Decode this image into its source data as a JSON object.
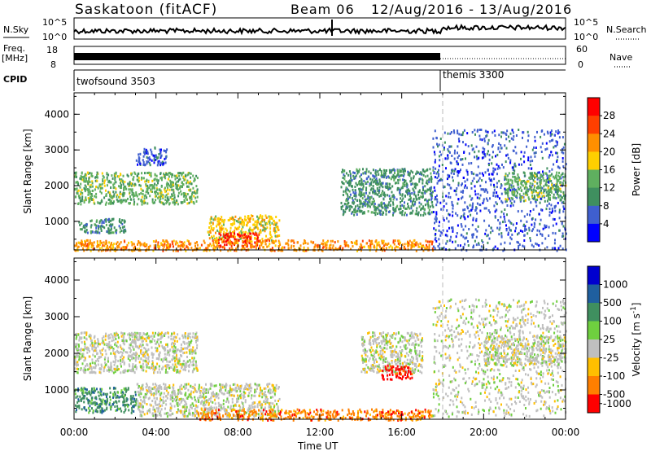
{
  "header": {
    "station": "Saskatoon (fitACF)",
    "beam": "Beam 06",
    "dates": "12/Aug/2016 - 13/Aug/2016"
  },
  "summary_panels": {
    "nsky_label": "N.Sky",
    "nsky_top": "10^5",
    "nsky_bottom": "10^0",
    "nsearch_label": "N.Search",
    "nsearch_right_top": "10^5",
    "nsearch_right_bottom": "10^0",
    "freq_label": "Freq.",
    "freq_unit": "[MHz]",
    "freq_top": "18",
    "freq_bottom": "8",
    "nave_label": "Nave",
    "nave_top": "60",
    "nave_bottom": "0",
    "cpid_label": "CPID",
    "cpid_programs": [
      {
        "name": "twofsound 3503",
        "start_hour": 0
      },
      {
        "name": "themis 3300",
        "start_hour": 18
      }
    ]
  },
  "colors": {
    "power_scale": [
      "#0000ff",
      "#3f5fcf",
      "#3f8f5f",
      "#5faf5f",
      "#ffcf00",
      "#ff8f00",
      "#ff3f00",
      "#ff0000"
    ],
    "velocity_scale": [
      "#0000cf",
      "#1f5f9f",
      "#3f8f5f",
      "#6fcf3f",
      "#bfbfbf",
      "#ffbf00",
      "#ff7f00",
      "#ff0000"
    ]
  },
  "chart_data": [
    {
      "type": "heatmap",
      "ylabel": "Slant Range [km]",
      "xlabel": "Time UT",
      "x_ticks": [
        "00:00",
        "04:00",
        "08:00",
        "12:00",
        "16:00",
        "20:00",
        "00:00"
      ],
      "x_range_hours": [
        0,
        24
      ],
      "y_ticks": [
        1000,
        2000,
        3000,
        4000
      ],
      "ylim": [
        200,
        4600
      ],
      "colorbar_label": "Power [dB]",
      "colorbar_ticks": [
        "4",
        "8",
        "12",
        "16",
        "20",
        "24",
        "28"
      ],
      "colorbar_range": [
        0,
        30
      ],
      "regions": [
        {
          "t0": 0.0,
          "t1": 6.0,
          "r0": 1500,
          "r1": 2400,
          "level": 12
        },
        {
          "t0": 3.0,
          "t1": 4.5,
          "r0": 2600,
          "r1": 3100,
          "level": 6
        },
        {
          "t0": 0.2,
          "t1": 2.5,
          "r0": 700,
          "r1": 1100,
          "level": 10
        },
        {
          "t0": 6.5,
          "t1": 10.0,
          "r0": 500,
          "r1": 1200,
          "level": 18
        },
        {
          "t0": 7.0,
          "t1": 9.0,
          "r0": 300,
          "r1": 700,
          "level": 28
        },
        {
          "t0": 0.0,
          "t1": 17.5,
          "r0": 200,
          "r1": 500,
          "level": 22
        },
        {
          "t0": 13.0,
          "t1": 17.5,
          "r0": 1200,
          "r1": 2500,
          "level": 8
        },
        {
          "t0": 17.5,
          "t1": 24.0,
          "r0": 200,
          "r1": 3600,
          "level": 6
        },
        {
          "t0": 21.0,
          "t1": 24.0,
          "r0": 1600,
          "r1": 2400,
          "level": 14
        }
      ]
    },
    {
      "type": "heatmap",
      "ylabel": "Slant Range [km]",
      "xlabel": "Time UT",
      "x_ticks": [
        "00:00",
        "04:00",
        "08:00",
        "12:00",
        "16:00",
        "20:00",
        "00:00"
      ],
      "x_range_hours": [
        0,
        24
      ],
      "y_ticks": [
        1000,
        2000,
        3000,
        4000
      ],
      "ylim": [
        200,
        4600
      ],
      "colorbar_label": "Velocity [m s^-1]",
      "colorbar_ticks": [
        "1000",
        "500",
        "100",
        "25",
        "-25",
        "-100",
        "-500",
        "-1000"
      ],
      "regions": [
        {
          "t0": 0.0,
          "t1": 6.0,
          "r0": 1500,
          "r1": 2600,
          "level": 0
        },
        {
          "t0": 0.0,
          "t1": 3.0,
          "r0": 400,
          "r1": 1100,
          "level": 100
        },
        {
          "t0": 3.0,
          "t1": 10.0,
          "r0": 300,
          "r1": 1200,
          "level": 0
        },
        {
          "t0": 6.0,
          "t1": 17.5,
          "r0": 200,
          "r1": 500,
          "level": -100
        },
        {
          "t0": 14.0,
          "t1": 17.0,
          "r0": 1500,
          "r1": 2600,
          "level": 0
        },
        {
          "t0": 15.0,
          "t1": 16.5,
          "r0": 1300,
          "r1": 1700,
          "level": -500
        },
        {
          "t0": 17.5,
          "t1": 24.0,
          "r0": 300,
          "r1": 3500,
          "level": 0
        },
        {
          "t0": 20.0,
          "t1": 24.0,
          "r0": 1700,
          "r1": 2500,
          "level": 0
        }
      ]
    }
  ]
}
